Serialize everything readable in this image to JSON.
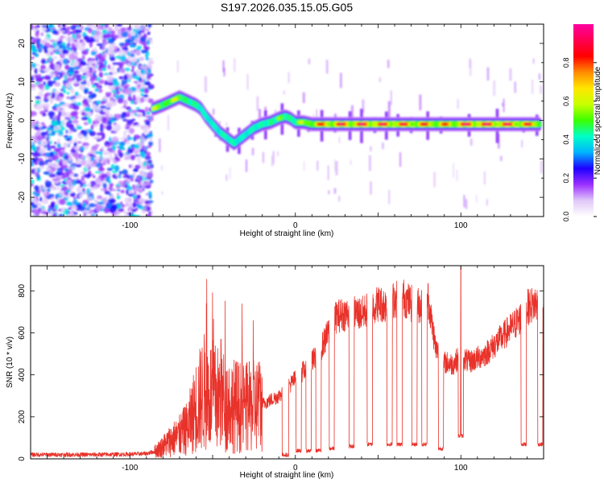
{
  "figure_title": "S197.2026.035.15.05.G05",
  "chart_data": [
    {
      "type": "heatmap",
      "title": "S197.2026.035.15.05.G05",
      "xlabel": "Height of straight line (km)",
      "ylabel": "Frequency (Hz)",
      "xlim": [
        -160,
        150
      ],
      "ylim": [
        -25,
        25
      ],
      "x_ticks": [
        -100,
        0,
        100
      ],
      "y_ticks": [
        -20,
        -10,
        0,
        10,
        20
      ],
      "colorbar": {
        "label": "Normalized spectral amplitude",
        "range": [
          0.0,
          1.0
        ],
        "ticks": [
          "0.0",
          "0.2",
          "0.4",
          "0.6",
          "0.8"
        ],
        "colors": [
          "#ffffff",
          "#e0c8f8",
          "#9b30ff",
          "#1e00ff",
          "#00b4ff",
          "#00ffc8",
          "#3cff00",
          "#c8ff00",
          "#ffe600",
          "#ff8c00",
          "#ff0000",
          "#ff0050",
          "#ff00a0"
        ]
      },
      "noise_region_x": [
        -160,
        -87
      ],
      "ridge": {
        "x": [
          -86,
          -80,
          -75,
          -70,
          -65,
          -60,
          -57,
          -54,
          -50,
          -46,
          -43,
          -40,
          -37,
          -34,
          -31,
          -28,
          -25,
          -20,
          -15,
          -10,
          -6,
          -3,
          0,
          5,
          10,
          20,
          40,
          60,
          80,
          95,
          100,
          120,
          140,
          148
        ],
        "frequency": [
          3,
          4,
          5,
          6,
          5,
          4,
          3,
          1,
          -1,
          -3,
          -4,
          -5,
          -6,
          -5,
          -4,
          -3,
          -2,
          -1,
          -0.5,
          0.5,
          1,
          0.5,
          -0.5,
          -0.5,
          -1,
          -1,
          -1,
          -1,
          -1,
          -1,
          -1,
          -1,
          -1,
          -1
        ],
        "amplitude": [
          0.55,
          0.6,
          0.6,
          0.55,
          0.5,
          0.45,
          0.4,
          0.35,
          0.35,
          0.35,
          0.4,
          0.4,
          0.4,
          0.35,
          0.35,
          0.35,
          0.4,
          0.4,
          0.45,
          0.5,
          0.5,
          0.45,
          0.45,
          0.6,
          0.7,
          0.85,
          0.9,
          0.85,
          0.8,
          0.75,
          0.9,
          0.9,
          0.85,
          0.7
        ]
      }
    },
    {
      "type": "line",
      "xlabel": "Height of straight line (km)",
      "ylabel": "SNR (10 * v/v)",
      "xlim": [
        -160,
        150
      ],
      "ylim": [
        0,
        920
      ],
      "x_ticks": [
        -100,
        0,
        100
      ],
      "y_ticks": [
        0,
        200,
        400,
        600,
        800
      ],
      "color": "#e8322a",
      "series": [
        {
          "name": "SNR",
          "x": [
            -160,
            -140,
            -120,
            -100,
            -90,
            -85,
            -80,
            -75,
            -70,
            -65,
            -60,
            -55,
            -50,
            -45,
            -40,
            -35,
            -30,
            -25,
            -20,
            -15,
            -10,
            -5,
            0,
            5,
            10,
            15,
            20,
            25,
            30,
            35,
            40,
            45,
            50,
            55,
            60,
            65,
            70,
            75,
            80,
            85,
            90,
            95,
            100,
            105,
            110,
            115,
            120,
            125,
            130,
            135,
            140,
            145,
            150
          ],
          "y": [
            20,
            20,
            20,
            22,
            25,
            35,
            60,
            90,
            110,
            150,
            250,
            320,
            300,
            280,
            260,
            250,
            240,
            250,
            260,
            280,
            300,
            340,
            380,
            420,
            460,
            520,
            600,
            680,
            690,
            700,
            690,
            720,
            740,
            730,
            760,
            770,
            740,
            730,
            770,
            520,
            460,
            450,
            490,
            460,
            480,
            500,
            540,
            580,
            620,
            660,
            720,
            740,
            730
          ],
          "dropouts": [
            {
              "x": [
                -8,
                -4
              ],
              "y": 10
            },
            {
              "x": 2,
              "y": 30
            },
            {
              "x": 8,
              "y": 30
            },
            {
              "x": 14,
              "y": 30
            },
            {
              "x": 22,
              "y": 40
            },
            {
              "x": 34,
              "y": 50
            },
            {
              "x": 45,
              "y": 60
            },
            {
              "x": 57,
              "y": 60
            },
            {
              "x": 63,
              "y": 60
            },
            {
              "x": 72,
              "y": 60
            },
            {
              "x": 78,
              "y": 60
            },
            {
              "x": 88,
              "y": 40
            },
            {
              "x": 100,
              "y": 100
            },
            {
              "x": 138,
              "y": 60
            },
            {
              "x": 148,
              "y": 60
            }
          ],
          "peaks": [
            {
              "x": 100,
              "y": 920
            },
            {
              "x": -45,
              "y": 570
            }
          ]
        }
      ]
    }
  ]
}
